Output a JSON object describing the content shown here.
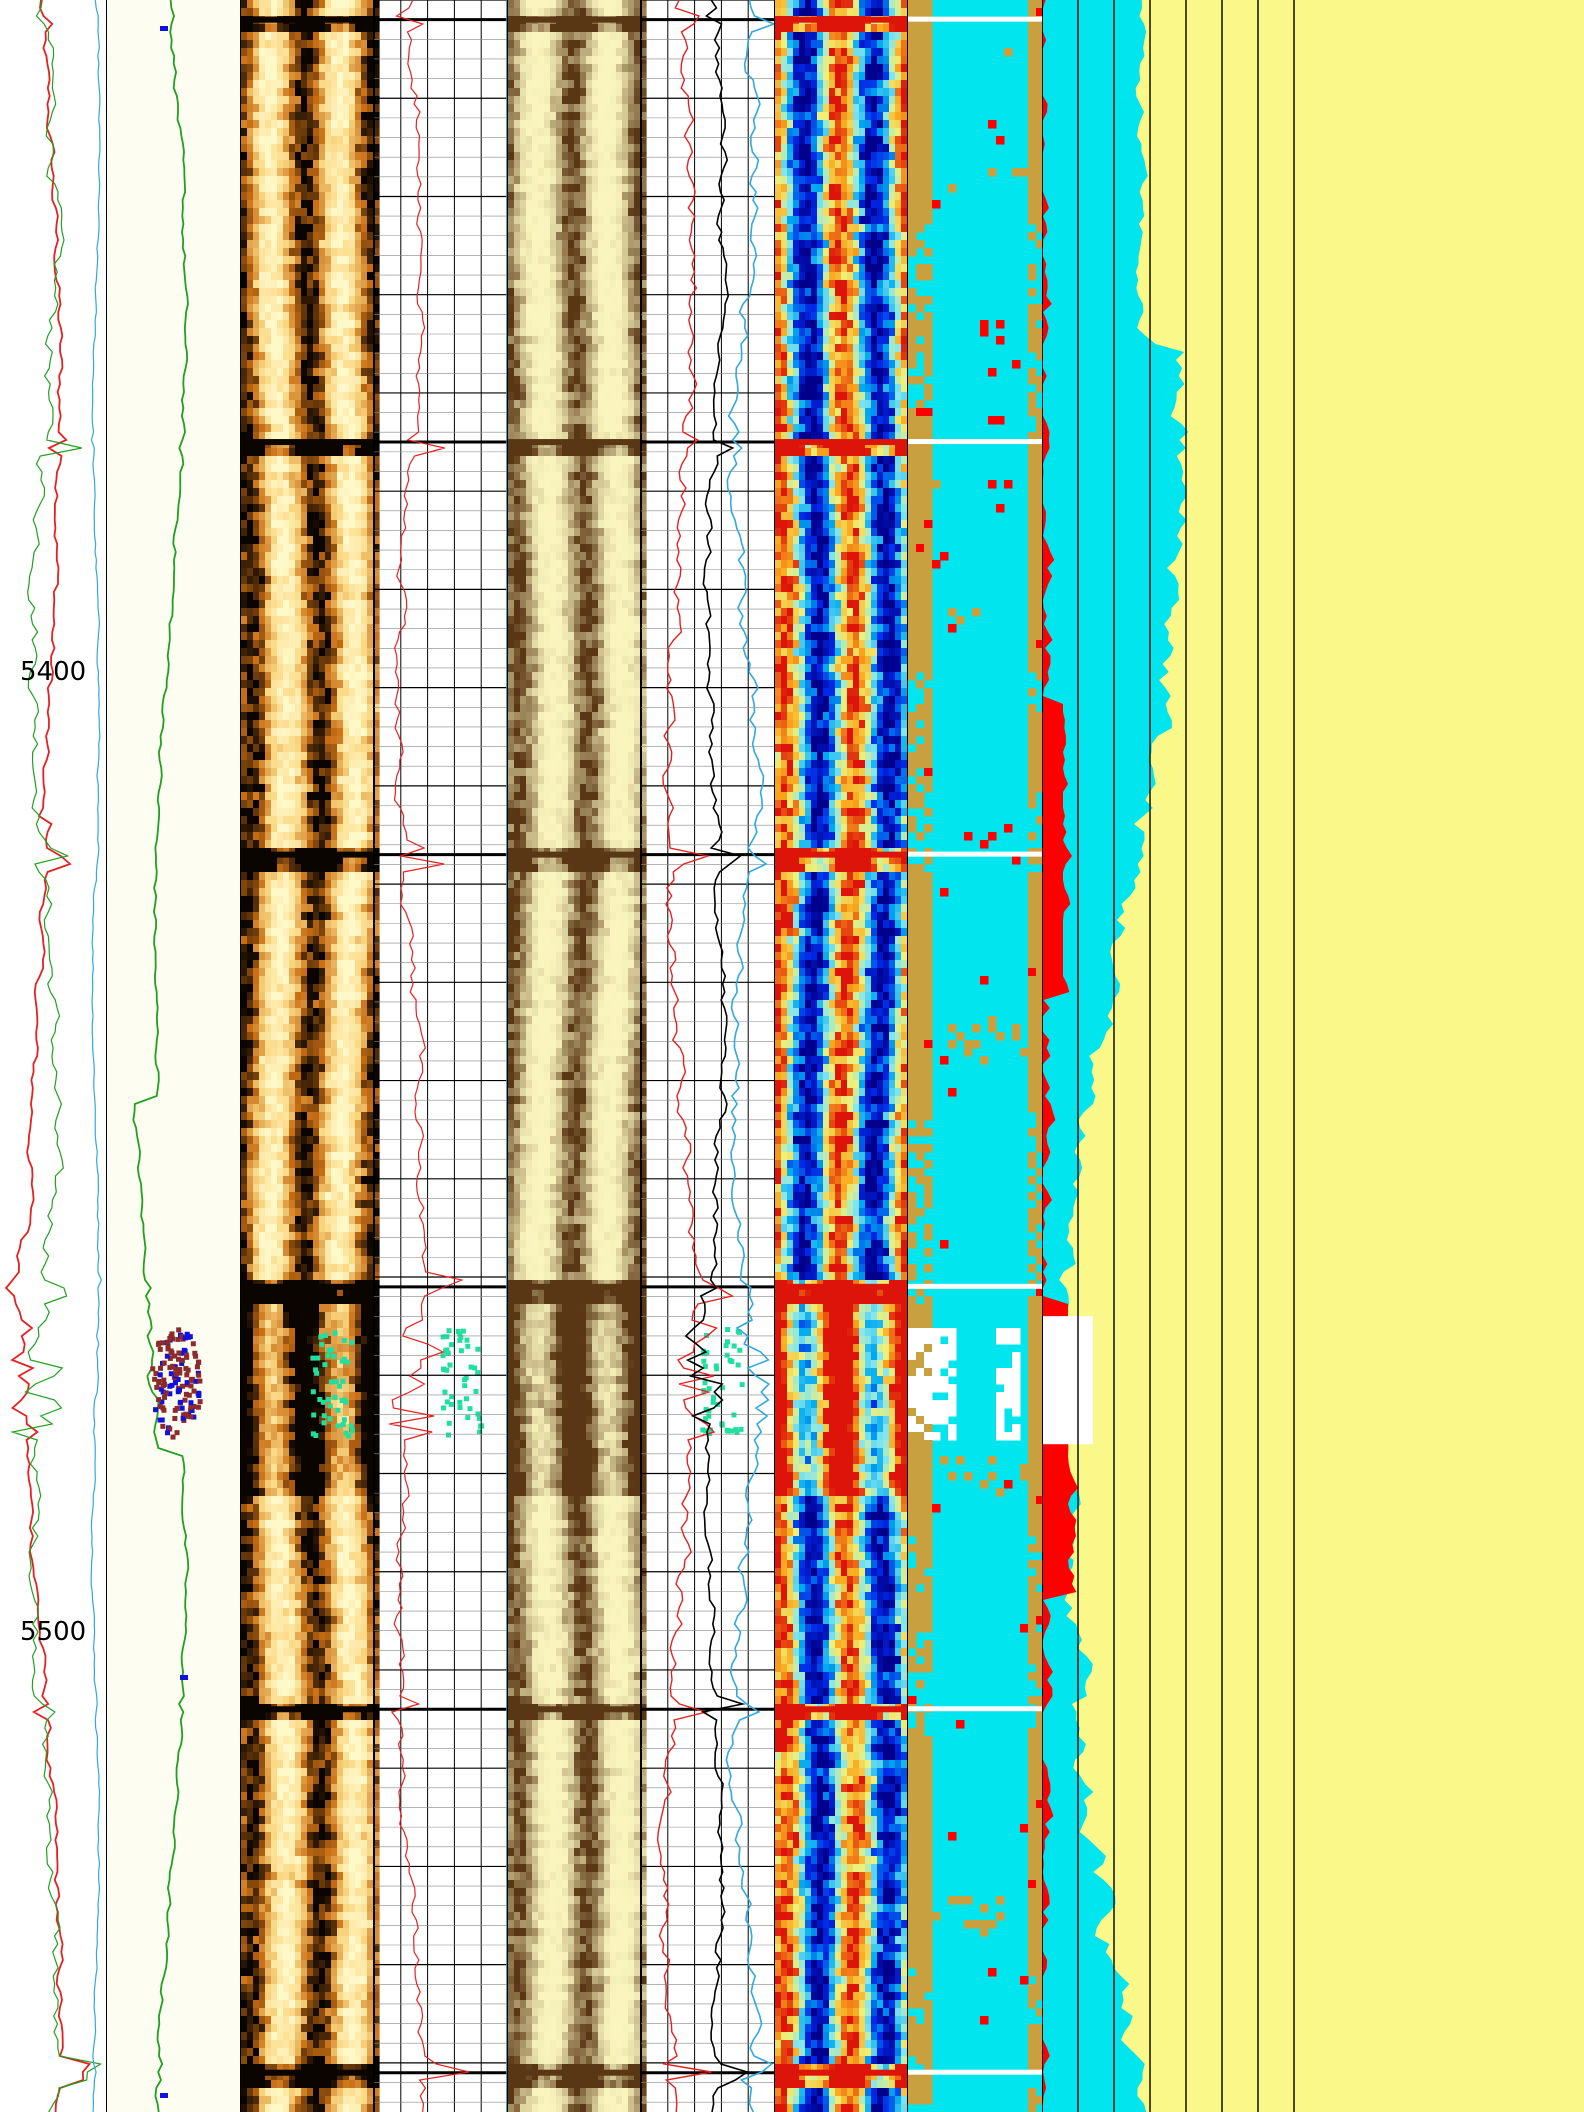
{
  "chart_data": {
    "type": "line",
    "title": "",
    "depth_axis": {
      "range": [
        5350,
        5565
      ],
      "tick_labels": [
        {
          "depth": 5400,
          "label": "5400"
        },
        {
          "depth": 5500,
          "label": "5500"
        }
      ]
    },
    "tracks": [
      {
        "id": "track-1",
        "kind": "curves",
        "series": [
          "gr-red",
          "curve-green",
          "curve-blue"
        ]
      },
      {
        "id": "track-2",
        "kind": "curve-with-points",
        "series": [
          "curve-green-2",
          "cluster-points"
        ]
      },
      {
        "id": "track-3",
        "kind": "image",
        "palette": "brown-heat",
        "name": "image-log-static"
      },
      {
        "id": "track-4",
        "kind": "curves-grid",
        "series": [
          "red-2",
          "black-1",
          "blue-2"
        ]
      },
      {
        "id": "track-5",
        "kind": "image",
        "palette": "light-yellow",
        "name": "image-log-dynamic"
      },
      {
        "id": "track-6",
        "kind": "curves-grid",
        "series": [
          "red-3",
          "black-2",
          "blue-3"
        ]
      },
      {
        "id": "track-7",
        "kind": "image",
        "palette": "jet",
        "name": "image-log-jet"
      },
      {
        "id": "track-8",
        "kind": "facies",
        "colors": [
          "#00e5ee",
          "#c9a040",
          "#ff0000",
          "#ffffff"
        ]
      },
      {
        "id": "track-9",
        "kind": "fill-curves",
        "colors": [
          "#00e5ee",
          "#fbf88a",
          "#ff0000"
        ]
      }
    ],
    "bed_boundaries": [
      5352,
      5395,
      5437,
      5481,
      5524,
      5561
    ],
    "event_zone": [
      5485,
      5496
    ],
    "colors": {
      "background": "#ffffff",
      "track2_bg": "#fdfdf1",
      "red": "#e62020",
      "green": "#20a020",
      "blue": "#30a8e0",
      "black": "#000000",
      "cluster_blue": "#1010e0",
      "cluster_brown": "#8b2b2b",
      "green_points": "#20e0a0",
      "cyan": "#00e5ee",
      "tan": "#c9a040",
      "yellow": "#fbf88a"
    }
  }
}
